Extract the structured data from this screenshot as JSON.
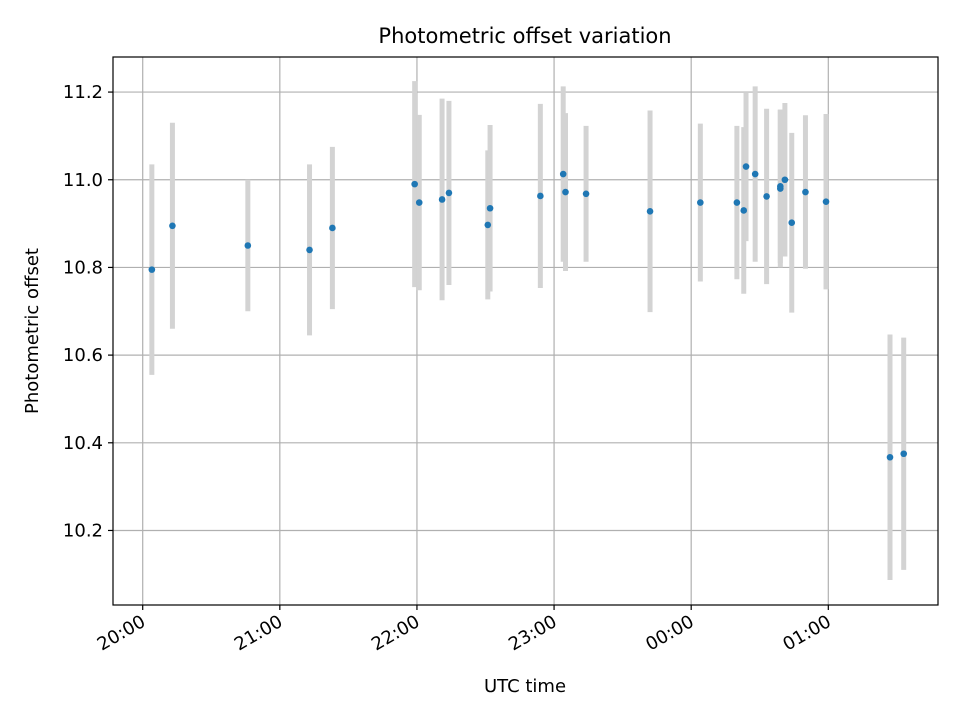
{
  "chart_data": {
    "type": "scatter",
    "title": "Photometric offset variation",
    "xlabel": "UTC time",
    "ylabel": "Photometric offset",
    "x_unit": "UTC time (HH:MM)",
    "xlim": [
      "19:47",
      "01:48"
    ],
    "ylim": [
      10.03,
      11.28
    ],
    "x_ticks": [
      "20:00",
      "21:00",
      "22:00",
      "23:00",
      "00:00",
      "01:00"
    ],
    "y_ticks": [
      "10.2",
      "10.4",
      "10.6",
      "10.8",
      "11.0",
      "11.2"
    ],
    "grid": true,
    "legend": "none",
    "point_color": "#1f77b4",
    "errorbar_color": "#d3d3d3",
    "points": [
      {
        "time": "20:04",
        "y": 10.795,
        "err": 0.24
      },
      {
        "time": "20:13",
        "y": 10.895,
        "err": 0.235
      },
      {
        "time": "20:46",
        "y": 10.85,
        "err": 0.15
      },
      {
        "time": "21:13",
        "y": 10.84,
        "err": 0.195
      },
      {
        "time": "21:23",
        "y": 10.89,
        "err": 0.185
      },
      {
        "time": "21:59",
        "y": 10.99,
        "err": 0.235
      },
      {
        "time": "22:01",
        "y": 10.948,
        "err": 0.2
      },
      {
        "time": "22:11",
        "y": 10.955,
        "err": 0.23
      },
      {
        "time": "22:14",
        "y": 10.97,
        "err": 0.21
      },
      {
        "time": "22:31",
        "y": 10.897,
        "err": 0.17
      },
      {
        "time": "22:32",
        "y": 10.935,
        "err": 0.19
      },
      {
        "time": "22:54",
        "y": 10.963,
        "err": 0.21
      },
      {
        "time": "23:04",
        "y": 11.013,
        "err": 0.2
      },
      {
        "time": "23:05",
        "y": 10.972,
        "err": 0.18
      },
      {
        "time": "23:14",
        "y": 10.968,
        "err": 0.155
      },
      {
        "time": "23:42",
        "y": 10.928,
        "err": 0.23
      },
      {
        "time": "00:04",
        "y": 10.948,
        "err": 0.18
      },
      {
        "time": "00:20",
        "y": 10.948,
        "err": 0.175
      },
      {
        "time": "00:23",
        "y": 10.93,
        "err": 0.19
      },
      {
        "time": "00:24",
        "y": 11.03,
        "err": 0.17
      },
      {
        "time": "00:28",
        "y": 11.013,
        "err": 0.2
      },
      {
        "time": "00:33",
        "y": 10.962,
        "err": 0.2
      },
      {
        "time": "00:39",
        "y": 10.98,
        "err": 0.18
      },
      {
        "time": "00:39",
        "y": 10.985,
        "err": 0.175
      },
      {
        "time": "00:41",
        "y": 11.0,
        "err": 0.175
      },
      {
        "time": "00:44",
        "y": 10.902,
        "err": 0.205
      },
      {
        "time": "00:50",
        "y": 10.972,
        "err": 0.175
      },
      {
        "time": "00:59",
        "y": 10.95,
        "err": 0.2
      },
      {
        "time": "01:27",
        "y": 10.367,
        "err": 0.28
      },
      {
        "time": "01:33",
        "y": 10.375,
        "err": 0.265
      }
    ]
  }
}
